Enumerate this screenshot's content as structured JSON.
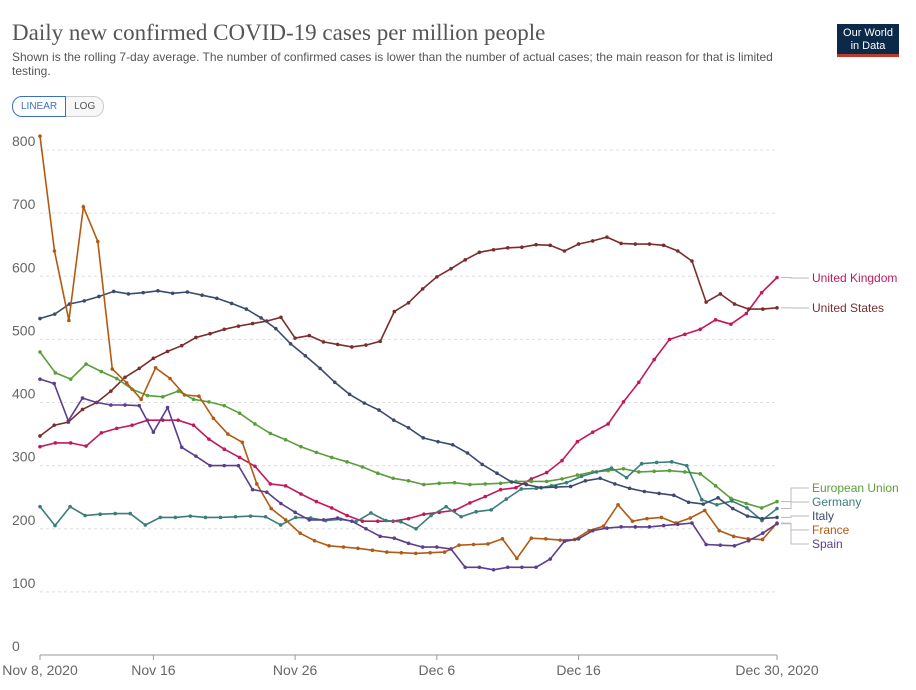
{
  "header": {
    "title": "Daily new confirmed COVID-19 cases per million people",
    "subtitle": "Shown is the rolling 7-day average. The number of confirmed cases is lower than the number of actual cases; the main reason for that is limited testing.",
    "logo_line1": "Our World",
    "logo_line2": "in Data"
  },
  "toggle": {
    "linear_label": "LINEAR",
    "log_label": "LOG"
  },
  "chart_data": {
    "type": "line",
    "x_ticks": [
      "Nov 8, 2020",
      "Nov 16",
      "Nov 26",
      "Dec 6",
      "Dec 16",
      "Dec 30, 2020"
    ],
    "y_ticks": [
      "0",
      "100",
      "200",
      "300",
      "400",
      "500",
      "600",
      "700",
      "800"
    ],
    "ylim": [
      0,
      800
    ],
    "grid": true,
    "x_start": "2020-11-08",
    "x_end": "2020-12-30",
    "series": [
      {
        "name": "United Kingdom",
        "color": "#c2185b",
        "values": [
          330,
          336,
          336,
          331,
          352,
          359,
          364,
          372,
          372,
          372,
          364,
          342,
          326,
          313,
          299,
          271,
          268,
          255,
          243,
          233,
          221,
          212,
          212,
          212,
          216,
          223,
          226,
          229,
          241,
          251,
          262,
          265,
          279,
          289,
          308,
          338,
          353,
          366,
          401,
          432,
          468,
          500,
          508,
          516,
          531,
          524,
          541,
          574,
          598
        ]
      },
      {
        "name": "United States",
        "color": "#7b2d2d",
        "values": [
          347,
          364,
          369,
          389,
          400,
          418,
          440,
          454,
          470,
          481,
          490,
          503,
          509,
          516,
          521,
          525,
          529,
          535,
          502,
          506,
          496,
          492,
          488,
          491,
          497,
          544,
          558,
          580,
          599,
          612,
          626,
          638,
          642,
          645,
          646,
          650,
          649,
          640,
          651,
          656,
          662,
          652,
          651,
          651,
          649,
          640,
          624,
          559,
          572,
          556,
          548,
          548,
          550
        ]
      },
      {
        "name": "European Union",
        "color": "#5a9e3a",
        "values": [
          480,
          447,
          437,
          461,
          449,
          438,
          421,
          411,
          409,
          418,
          405,
          401,
          395,
          383,
          366,
          351,
          341,
          330,
          321,
          313,
          306,
          298,
          288,
          280,
          276,
          270,
          272,
          273,
          270,
          271,
          272,
          275,
          275,
          275,
          279,
          285,
          290,
          292,
          295,
          290,
          291,
          292,
          290,
          287,
          268,
          248,
          240,
          233,
          243
        ]
      },
      {
        "name": "Germany",
        "color": "#3a7d7a",
        "values": [
          235,
          205,
          235,
          221,
          223,
          224,
          224,
          206,
          218,
          218,
          220,
          218,
          218,
          219,
          220,
          219,
          206,
          218,
          217,
          213,
          215,
          211,
          225,
          213,
          211,
          200,
          221,
          235,
          219,
          227,
          230,
          247,
          263,
          264,
          268,
          273,
          283,
          290,
          296,
          281,
          303,
          305,
          306,
          300,
          246,
          238,
          244,
          233,
          213,
          232
        ]
      },
      {
        "name": "Italy",
        "color": "#3c4a6e",
        "values": [
          533,
          540,
          556,
          561,
          568,
          576,
          572,
          574,
          577,
          573,
          575,
          570,
          565,
          557,
          548,
          534,
          517,
          493,
          474,
          454,
          432,
          413,
          399,
          388,
          372,
          360,
          344,
          338,
          333,
          320,
          302,
          288,
          274,
          270,
          265,
          266,
          267,
          276,
          280,
          271,
          264,
          259,
          256,
          253,
          242,
          239,
          249,
          232,
          220,
          216,
          218
        ]
      },
      {
        "name": "France",
        "color": "#b25a14",
        "values": [
          822,
          640,
          530,
          710,
          655,
          453,
          431,
          405,
          455,
          438,
          412,
          410,
          375,
          350,
          337,
          271,
          232,
          214,
          193,
          181,
          173,
          171,
          169,
          166,
          163,
          162,
          161,
          162,
          163,
          174,
          175,
          176,
          184,
          153,
          185,
          184,
          182,
          183,
          197,
          204,
          238,
          212,
          216,
          218,
          209,
          217,
          229,
          197,
          188,
          184,
          183,
          209
        ]
      },
      {
        "name": "Spain",
        "color": "#5b3e8c",
        "values": [
          437,
          430,
          371,
          407,
          400,
          396,
          396,
          395,
          353,
          392,
          329,
          315,
          300,
          300,
          300,
          262,
          258,
          240,
          226,
          214,
          214,
          217,
          212,
          200,
          188,
          185,
          177,
          171,
          171,
          168,
          139,
          139,
          135,
          139,
          139,
          139,
          152,
          180,
          184,
          197,
          201,
          203,
          203,
          203,
          205,
          207,
          209,
          175,
          174,
          173,
          181,
          193,
          208
        ]
      }
    ]
  }
}
